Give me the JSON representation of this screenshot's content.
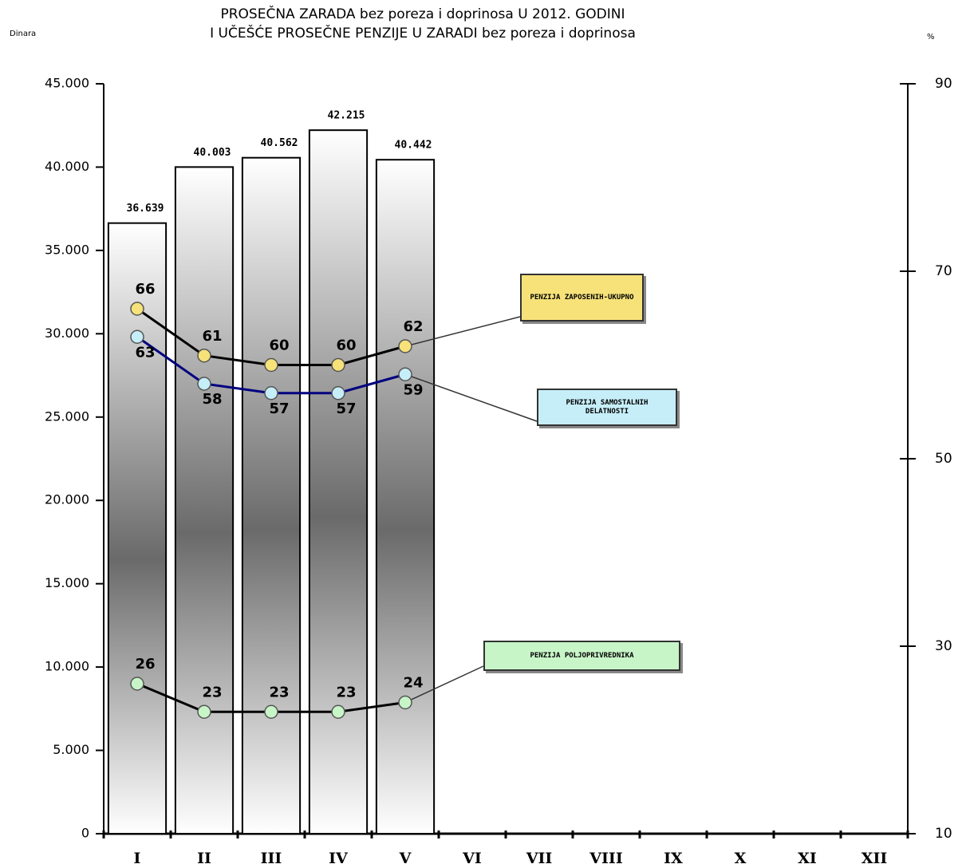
{
  "chart_data": {
    "type": "bar_line",
    "title": "PROSEČNA ZARADA bez poreza i doprinosa U 2012. GODINI",
    "subtitle": "I UČEŠĆE PROSEČNE PENZIJE U ZARADI bez poreza i doprinosa",
    "y_label": "Dinara",
    "y2_label": "%",
    "categories": [
      "I",
      "II",
      "III",
      "IV",
      "V",
      "VI",
      "VII",
      "VIII",
      "IX",
      "X",
      "XI",
      "XII"
    ],
    "values": [
      36639,
      40003,
      40562,
      42215,
      40442,
      null,
      null,
      null,
      null,
      null,
      null,
      null
    ],
    "value_labels": [
      "36.639",
      "40.003",
      "40.562",
      "42.215",
      "40.442",
      null,
      null,
      null,
      null,
      null,
      null,
      null
    ],
    "ylim": [
      0,
      45000
    ],
    "yticks": [
      {
        "value": 0,
        "label": "0"
      },
      {
        "value": 5000,
        "label": "5.000"
      },
      {
        "value": 10000,
        "label": "10.000"
      },
      {
        "value": 15000,
        "label": "15.000"
      },
      {
        "value": 20000,
        "label": "20.000"
      },
      {
        "value": 25000,
        "label": "25.000"
      },
      {
        "value": 30000,
        "label": "30.000"
      },
      {
        "value": 35000,
        "label": "35.000"
      },
      {
        "value": 40000,
        "label": "40.000"
      },
      {
        "value": 45000,
        "label": "45.000"
      }
    ],
    "y2lim": [
      10,
      90
    ],
    "y2ticks": [
      10,
      30,
      50,
      70,
      90
    ],
    "series": [
      {
        "name": "PENZIJA ZAPOSENIH-UKUPNO",
        "axis": "y2",
        "color": "#000000",
        "marker_color": "#f7e27a",
        "values": [
          66,
          61,
          60,
          60,
          62,
          null,
          null,
          null,
          null,
          null,
          null,
          null
        ]
      },
      {
        "name": "PENZIJA SAMOSTALNIH DELATNOSTI",
        "axis": "y2",
        "color": "#000080",
        "marker_color": "#c6eef8",
        "values": [
          63,
          58,
          57,
          57,
          59,
          null,
          null,
          null,
          null,
          null,
          null,
          null
        ]
      },
      {
        "name": "PENZIJA POLJOPRIVREDNIKA",
        "axis": "y2",
        "color": "#000000",
        "marker_color": "#c8f5c8",
        "values": [
          26,
          23,
          23,
          23,
          24,
          null,
          null,
          null,
          null,
          null,
          null,
          null
        ]
      }
    ],
    "grid": false
  }
}
